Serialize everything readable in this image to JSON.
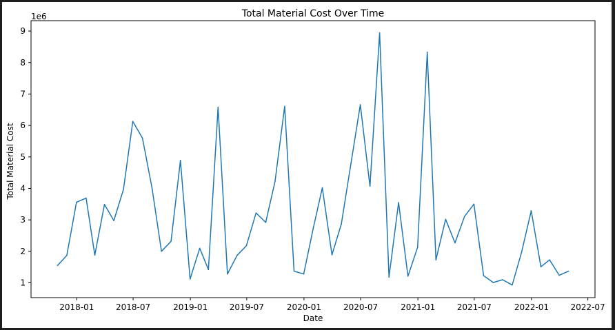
{
  "chart_data": {
    "type": "line",
    "title": "Total Material Cost Over Time",
    "xlabel": "Date",
    "ylabel": "Total Material Cost",
    "y_multiplier_label": "1e6",
    "x_ticks": [
      "2018-01",
      "2018-07",
      "2019-01",
      "2019-07",
      "2020-01",
      "2020-07",
      "2021-01",
      "2021-07",
      "2022-01",
      "2022-07"
    ],
    "y_ticks": [
      1,
      2,
      3,
      4,
      5,
      6,
      7,
      8,
      9
    ],
    "x_range": [
      "2017-08-07",
      "2022-07-24"
    ],
    "ylim": [
      0.53,
      9.33
    ],
    "grid": false,
    "series": [
      {
        "color": "#1f77b4",
        "x": [
          "2017-10-31",
          "2017-11-30",
          "2017-12-31",
          "2018-01-31",
          "2018-02-28",
          "2018-03-31",
          "2018-04-30",
          "2018-05-31",
          "2018-06-30",
          "2018-07-31",
          "2018-08-31",
          "2018-09-30",
          "2018-10-31",
          "2018-11-30",
          "2018-12-31",
          "2019-01-31",
          "2019-02-28",
          "2019-03-31",
          "2019-04-30",
          "2019-05-31",
          "2019-06-30",
          "2019-07-31",
          "2019-08-31",
          "2019-09-30",
          "2019-10-31",
          "2019-11-30",
          "2019-12-31",
          "2020-01-31",
          "2020-02-29",
          "2020-03-31",
          "2020-04-30",
          "2020-05-31",
          "2020-06-30",
          "2020-07-31",
          "2020-08-31",
          "2020-09-30",
          "2020-10-31",
          "2020-11-30",
          "2020-12-31",
          "2021-01-31",
          "2021-02-28",
          "2021-03-31",
          "2021-04-30",
          "2021-05-31",
          "2021-06-30",
          "2021-07-31",
          "2021-08-31",
          "2021-09-30",
          "2021-10-31",
          "2021-11-30",
          "2021-12-31",
          "2022-01-31",
          "2022-02-28",
          "2022-03-31",
          "2022-04-30"
        ],
        "values": [
          1.55,
          1.87,
          3.56,
          3.69,
          1.88,
          3.49,
          2.98,
          3.97,
          6.13,
          5.6,
          4.0,
          2.0,
          2.32,
          4.89,
          1.12,
          2.1,
          1.42,
          6.58,
          1.28,
          1.87,
          2.18,
          3.22,
          2.92,
          4.22,
          6.61,
          1.37,
          1.28,
          2.75,
          4.02,
          1.89,
          2.87,
          4.8,
          6.66,
          4.07,
          8.94,
          1.18,
          3.55,
          1.21,
          2.13,
          8.33,
          1.73,
          3.02,
          2.27,
          3.11,
          3.5,
          1.23,
          1.01,
          1.1,
          0.93,
          1.97,
          3.29,
          1.51,
          1.73,
          1.24,
          1.37
        ]
      }
    ]
  }
}
